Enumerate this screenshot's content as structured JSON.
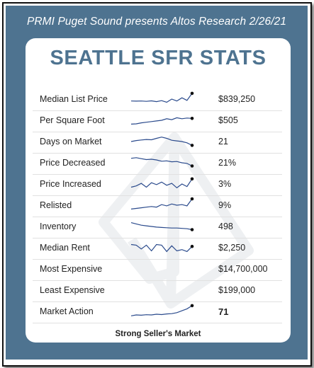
{
  "header": {
    "title": "PRMI Puget Sound presents Altos Research 2/26/21"
  },
  "card": {
    "title": "SEATTLE SFR STATS",
    "footer": "Strong Seller's Market"
  },
  "colors": {
    "panel": "#4e7390",
    "title": "#4e7390",
    "spark": "#2a4a8c"
  },
  "rows": [
    {
      "label": "Median List Price",
      "value": "$839,250",
      "bold": false,
      "trend": [
        0.35,
        0.34,
        0.35,
        0.32,
        0.36,
        0.3,
        0.38,
        0.25,
        0.5,
        0.35,
        0.6,
        0.4,
        0.95
      ]
    },
    {
      "label": "Per Square Foot",
      "value": "$505",
      "bold": false,
      "trend": [
        0.2,
        0.22,
        0.3,
        0.35,
        0.4,
        0.45,
        0.5,
        0.62,
        0.55,
        0.7,
        0.62,
        0.68,
        0.65
      ]
    },
    {
      "label": "Days on Market",
      "value": "21",
      "bold": false,
      "trend": [
        0.5,
        0.58,
        0.62,
        0.66,
        0.64,
        0.75,
        0.85,
        0.75,
        0.6,
        0.55,
        0.5,
        0.4,
        0.2
      ]
    },
    {
      "label": "Price Decreased",
      "value": "21%",
      "bold": false,
      "trend": [
        0.85,
        0.9,
        0.82,
        0.75,
        0.78,
        0.72,
        0.62,
        0.65,
        0.58,
        0.6,
        0.5,
        0.45,
        0.25
      ]
    },
    {
      "label": "Price Increased",
      "value": "3%",
      "bold": false,
      "trend": [
        0.25,
        0.35,
        0.55,
        0.25,
        0.6,
        0.45,
        0.65,
        0.4,
        0.55,
        0.2,
        0.5,
        0.3,
        0.9
      ]
    },
    {
      "label": "Relisted",
      "value": "9%",
      "bold": false,
      "trend": [
        0.2,
        0.25,
        0.3,
        0.35,
        0.4,
        0.35,
        0.55,
        0.45,
        0.6,
        0.5,
        0.55,
        0.45,
        1.0
      ]
    },
    {
      "label": "Inventory",
      "value": "498",
      "bold": false,
      "trend": [
        0.8,
        0.7,
        0.6,
        0.55,
        0.5,
        0.45,
        0.42,
        0.4,
        0.38,
        0.38,
        0.35,
        0.32,
        0.25
      ]
    },
    {
      "label": "Median Rent",
      "value": "$2,250",
      "bold": false,
      "trend": [
        0.75,
        0.7,
        0.4,
        0.7,
        0.25,
        0.75,
        0.7,
        0.2,
        0.65,
        0.25,
        0.35,
        0.2,
        0.6
      ]
    },
    {
      "label": "Most Expensive",
      "value": "$14,700,000",
      "bold": false,
      "trend": []
    },
    {
      "label": "Least Expensive",
      "value": "$199,000",
      "bold": false,
      "trend": []
    },
    {
      "label": "Market Action",
      "value": "71",
      "bold": true,
      "trend": [
        0.15,
        0.22,
        0.2,
        0.24,
        0.22,
        0.28,
        0.25,
        0.3,
        0.32,
        0.4,
        0.55,
        0.7,
        0.95
      ]
    }
  ]
}
